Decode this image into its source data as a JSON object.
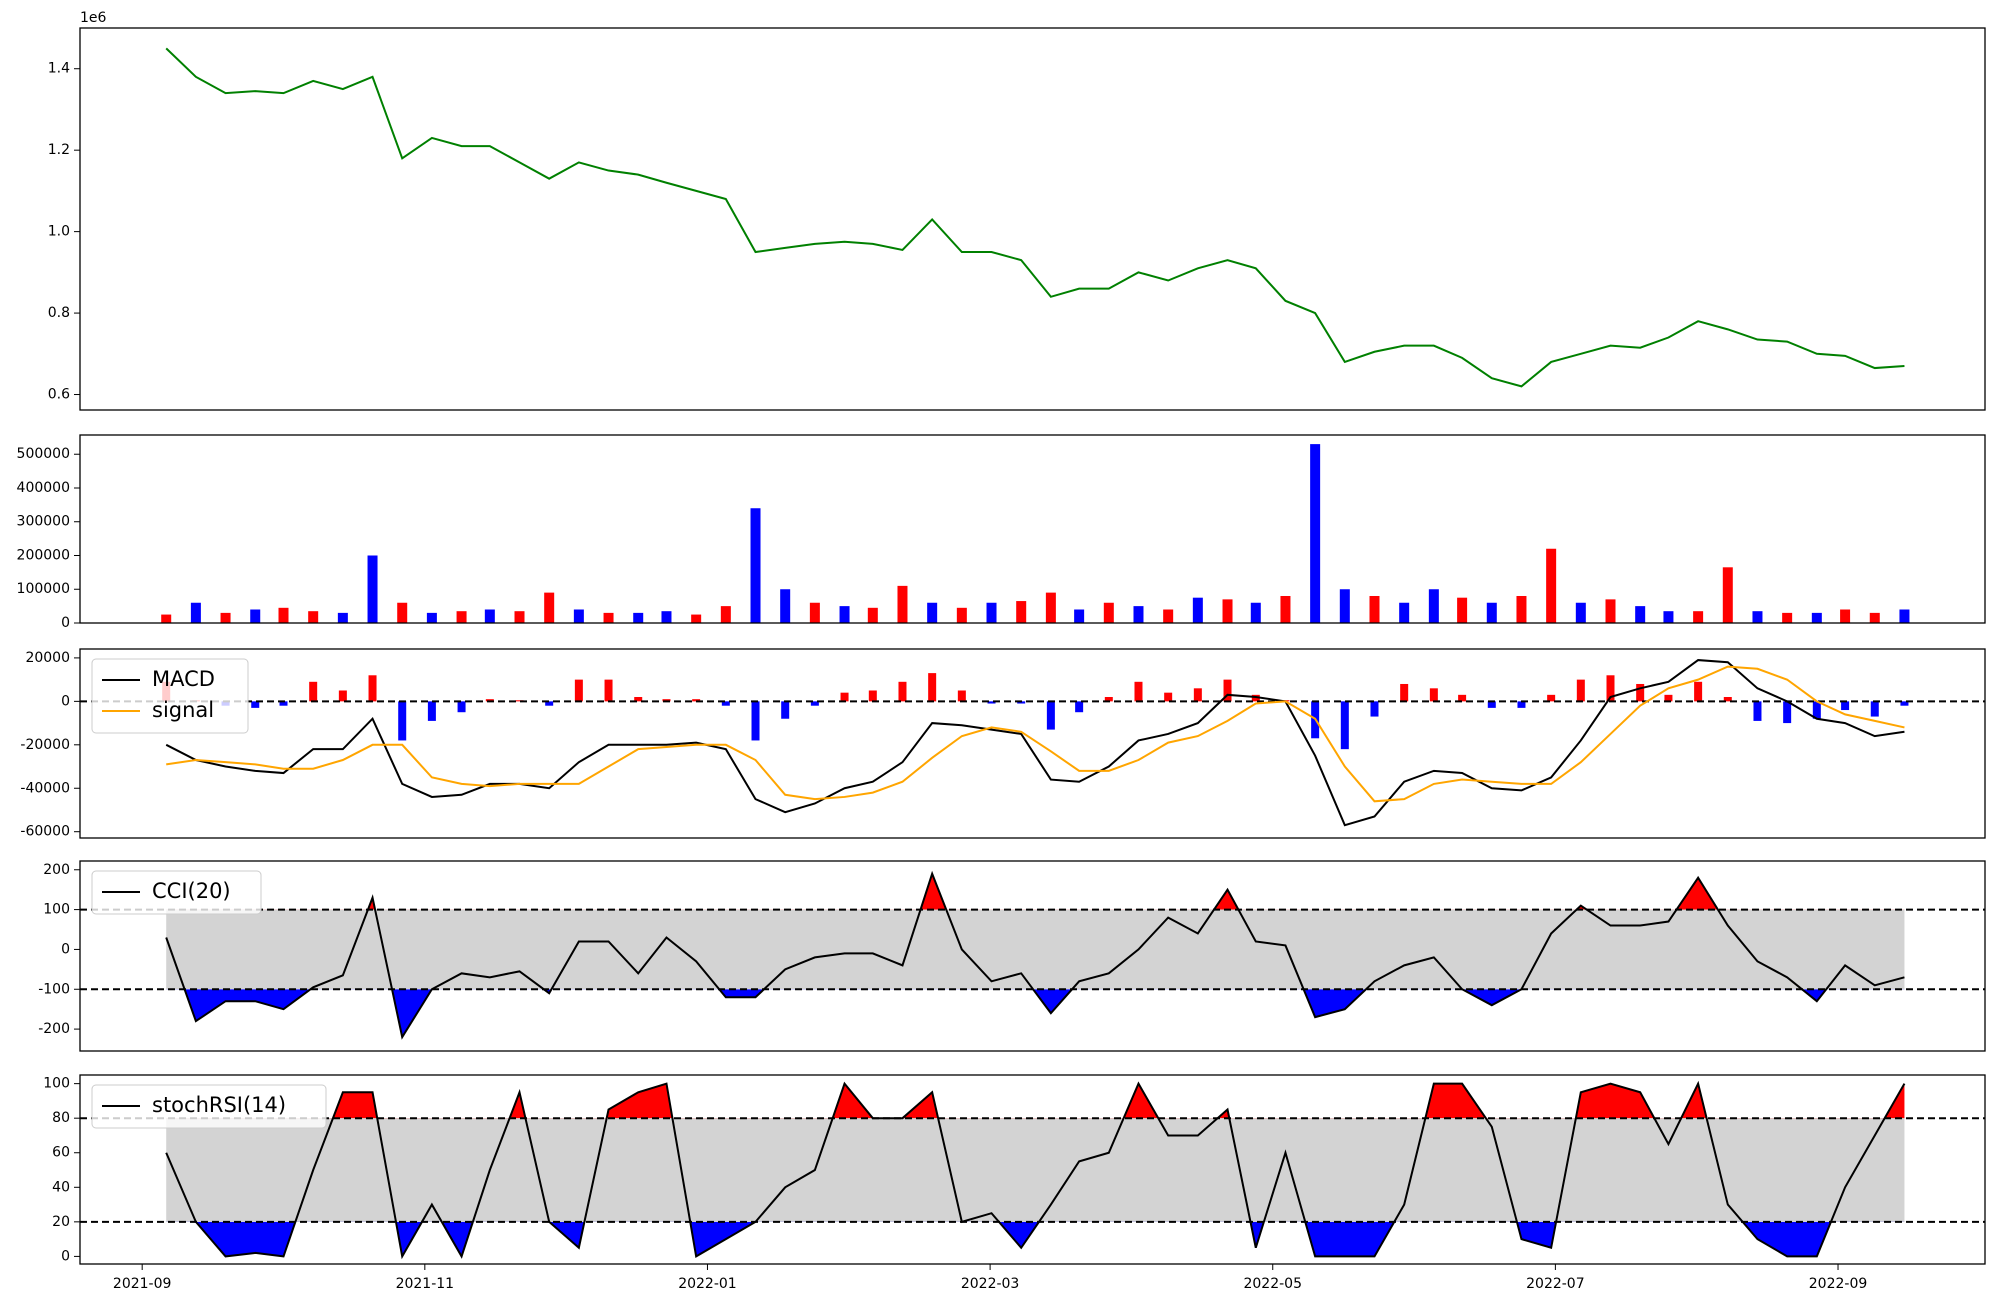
{
  "chart_data": [
    {
      "type": "line",
      "color": "green",
      "offset_label": "1e6",
      "x": [
        0.17,
        0.38,
        0.59,
        0.8,
        1.0,
        1.21,
        1.42,
        1.63,
        1.84,
        2.05,
        2.26,
        2.46,
        2.67,
        2.88,
        3.09,
        3.3,
        3.51,
        3.71,
        3.92,
        4.13,
        4.34,
        4.55,
        4.76,
        4.97,
        5.17,
        5.38,
        5.59,
        5.8,
        6.01,
        6.22,
        6.43,
        6.63,
        6.84,
        7.05,
        7.26,
        7.47,
        7.68,
        7.88,
        8.09,
        8.3,
        8.51,
        8.72,
        8.93,
        9.14,
        9.34,
        9.55,
        9.76,
        9.97,
        10.18,
        10.39,
        10.6,
        10.8,
        11.01,
        11.22,
        11.43,
        11.64,
        11.85,
        12.05,
        12.26,
        12.47
      ],
      "values": [
        1.45,
        1.38,
        1.34,
        1.345,
        1.34,
        1.37,
        1.35,
        1.38,
        1.18,
        1.23,
        1.21,
        1.21,
        1.17,
        1.13,
        1.17,
        1.15,
        1.14,
        1.12,
        1.1,
        1.08,
        0.95,
        0.96,
        0.97,
        0.975,
        0.97,
        0.955,
        1.03,
        0.95,
        0.95,
        0.93,
        0.84,
        0.86,
        0.86,
        0.9,
        0.88,
        0.91,
        0.93,
        0.91,
        0.83,
        0.8,
        0.68,
        0.705,
        0.72,
        0.72,
        0.69,
        0.64,
        0.62,
        0.68,
        0.7,
        0.72,
        0.715,
        0.74,
        0.78,
        0.76,
        0.735,
        0.73,
        0.7,
        0.695,
        0.665,
        0.67
      ],
      "xlim": [
        -0.44,
        13.04
      ],
      "ylim": [
        0.562,
        1.5
      ],
      "yticks": [
        {
          "value": 0.6,
          "label": "0.6"
        },
        {
          "value": 0.8,
          "label": "0.8"
        },
        {
          "value": 1.0,
          "label": "1.0"
        },
        {
          "value": 1.2,
          "label": "1.2"
        },
        {
          "value": 1.4,
          "label": "1.4"
        }
      ]
    },
    {
      "type": "bar",
      "x": [
        0.17,
        0.38,
        0.59,
        0.8,
        1.0,
        1.21,
        1.42,
        1.63,
        1.84,
        2.05,
        2.26,
        2.46,
        2.67,
        2.88,
        3.09,
        3.3,
        3.51,
        3.71,
        3.92,
        4.13,
        4.34,
        4.55,
        4.76,
        4.97,
        5.17,
        5.38,
        5.59,
        5.8,
        6.01,
        6.22,
        6.43,
        6.63,
        6.84,
        7.05,
        7.26,
        7.47,
        7.68,
        7.88,
        8.09,
        8.3,
        8.51,
        8.72,
        8.93,
        9.14,
        9.34,
        9.55,
        9.76,
        9.97,
        10.18,
        10.39,
        10.6,
        10.8,
        11.01,
        11.22,
        11.43,
        11.64,
        11.85,
        12.05,
        12.26,
        12.47
      ],
      "values": [
        25000,
        60000,
        30000,
        40000,
        45000,
        35000,
        30000,
        200000,
        60000,
        30000,
        35000,
        40000,
        35000,
        90000,
        40000,
        30000,
        30000,
        35000,
        25000,
        50000,
        340000,
        100000,
        60000,
        50000,
        45000,
        110000,
        60000,
        45000,
        60000,
        65000,
        90000,
        40000,
        60000,
        50000,
        40000,
        75000,
        70000,
        60000,
        80000,
        530000,
        100000,
        80000,
        60000,
        100000,
        75000,
        60000,
        80000,
        220000,
        60000,
        70000,
        50000,
        35000,
        35000,
        165000,
        35000,
        30000,
        30000,
        40000,
        30000,
        40000
      ],
      "colors": [
        "red",
        "blue",
        "red",
        "blue",
        "red",
        "red",
        "blue",
        "blue",
        "red",
        "blue",
        "red",
        "blue",
        "red",
        "red",
        "blue",
        "red",
        "blue",
        "blue",
        "red",
        "red",
        "blue",
        "blue",
        "red",
        "blue",
        "red",
        "red",
        "blue",
        "red",
        "blue",
        "red",
        "red",
        "blue",
        "red",
        "blue",
        "red",
        "blue",
        "red",
        "blue",
        "red",
        "blue",
        "blue",
        "red",
        "blue",
        "blue",
        "red",
        "blue",
        "red",
        "red",
        "blue",
        "red",
        "blue",
        "blue",
        "red",
        "red",
        "blue",
        "red",
        "blue",
        "red",
        "red",
        "blue"
      ],
      "xlim": [
        -0.44,
        13.04
      ],
      "ylim": [
        0,
        557000
      ],
      "yticks": [
        0,
        100000,
        200000,
        300000,
        400000,
        500000
      ]
    },
    {
      "type": "macd",
      "x": [
        0.17,
        0.38,
        0.59,
        0.8,
        1.0,
        1.21,
        1.42,
        1.63,
        1.84,
        2.05,
        2.26,
        2.46,
        2.67,
        2.88,
        3.09,
        3.3,
        3.51,
        3.71,
        3.92,
        4.13,
        4.34,
        4.55,
        4.76,
        4.97,
        5.17,
        5.38,
        5.59,
        5.8,
        6.01,
        6.22,
        6.43,
        6.63,
        6.84,
        7.05,
        7.26,
        7.47,
        7.68,
        7.88,
        8.09,
        8.3,
        8.51,
        8.72,
        8.93,
        9.14,
        9.34,
        9.55,
        9.76,
        9.97,
        10.18,
        10.39,
        10.6,
        10.8,
        11.01,
        11.22,
        11.43,
        11.64,
        11.85,
        12.05,
        12.26,
        12.47
      ],
      "series": [
        {
          "name": "MACD",
          "color": "black",
          "values": [
            -20000,
            -27000,
            -30000,
            -32000,
            -33000,
            -22000,
            -22000,
            -8000,
            -38000,
            -44000,
            -43000,
            -38000,
            -38000,
            -40000,
            -28000,
            -20000,
            -20000,
            -20000,
            -19000,
            -22000,
            -45000,
            -51000,
            -47000,
            -40000,
            -37000,
            -28000,
            -10000,
            -11000,
            -13000,
            -15000,
            -36000,
            -37000,
            -30000,
            -18000,
            -15000,
            -10000,
            3000,
            2000,
            0,
            -25000,
            -57000,
            -53000,
            -37000,
            -32000,
            -33000,
            -40000,
            -41000,
            -35000,
            -18000,
            2000,
            6000,
            9000,
            19000,
            18000,
            6000,
            0,
            -8000,
            -10000,
            -16000,
            -14000
          ]
        },
        {
          "name": "signal",
          "color": "orange",
          "values": [
            -29000,
            -27000,
            -28000,
            -29000,
            -31000,
            -31000,
            -27000,
            -20000,
            -20000,
            -35000,
            -38000,
            -39000,
            -38000,
            -38000,
            -38000,
            -30000,
            -22000,
            -21000,
            -20000,
            -20000,
            -27000,
            -43000,
            -45000,
            -44000,
            -42000,
            -37000,
            -26000,
            -16000,
            -12000,
            -14000,
            -23000,
            -32000,
            -32000,
            -27000,
            -19000,
            -16000,
            -9000,
            -1000,
            0,
            -8000,
            -30000,
            -46000,
            -45000,
            -38000,
            -36000,
            -37000,
            -38000,
            -38000,
            -28000,
            -15000,
            -2000,
            6000,
            10000,
            16000,
            15000,
            10000,
            0,
            -6000,
            -9000,
            -12000
          ]
        }
      ],
      "histogram": [
        9000,
        500,
        -2000,
        -3000,
        -2000,
        9000,
        5000,
        12000,
        -18000,
        -9000,
        -5000,
        1000,
        500,
        -2000,
        10000,
        10000,
        2000,
        1000,
        1000,
        -2000,
        -18000,
        -8000,
        -2000,
        4000,
        5000,
        9000,
        13000,
        5000,
        -1000,
        -1000,
        -13000,
        -5000,
        2000,
        9000,
        4000,
        6000,
        10000,
        3000,
        500,
        -17000,
        -22000,
        -7000,
        8000,
        6000,
        3000,
        -3000,
        -3000,
        3000,
        10000,
        12000,
        8000,
        3000,
        9000,
        2000,
        -9000,
        -10000,
        -8000,
        -4000,
        -7000,
        -2000
      ],
      "up_color": "red",
      "down_color": "blue",
      "levels": [
        0
      ],
      "legend": "upper left",
      "xlim": [
        -0.44,
        13.04
      ],
      "ylim": [
        -62900,
        24100
      ],
      "yticks": [
        -60000,
        -40000,
        -20000,
        0,
        20000
      ]
    },
    {
      "type": "oscillator",
      "x": [
        0.17,
        0.38,
        0.59,
        0.8,
        1.0,
        1.21,
        1.42,
        1.63,
        1.84,
        2.05,
        2.26,
        2.46,
        2.67,
        2.88,
        3.09,
        3.3,
        3.51,
        3.71,
        3.92,
        4.13,
        4.34,
        4.55,
        4.76,
        4.97,
        5.17,
        5.38,
        5.59,
        5.8,
        6.01,
        6.22,
        6.43,
        6.63,
        6.84,
        7.05,
        7.26,
        7.47,
        7.68,
        7.88,
        8.09,
        8.3,
        8.51,
        8.72,
        8.93,
        9.14,
        9.34,
        9.55,
        9.76,
        9.97,
        10.18,
        10.39,
        10.6,
        10.8,
        11.01,
        11.22,
        11.43,
        11.64,
        11.85,
        12.05,
        12.26,
        12.47
      ],
      "series": [
        {
          "name": "CCI(20)",
          "color": "black",
          "values": [
            30,
            -180,
            -130,
            -130,
            -150,
            -95,
            -65,
            130,
            -220,
            -100,
            -60,
            -70,
            -55,
            -110,
            20,
            20,
            -60,
            30,
            -30,
            -120,
            -120,
            -50,
            -20,
            -10,
            -10,
            -40,
            190,
            0,
            -80,
            -60,
            -160,
            -80,
            -60,
            0,
            80,
            40,
            150,
            20,
            10,
            -170,
            -150,
            -80,
            -40,
            -20,
            -100,
            -140,
            -100,
            40,
            110,
            60,
            60,
            70,
            180,
            60,
            -30,
            -70,
            -130,
            -40,
            -90,
            -70
          ]
        }
      ],
      "levels": [
        100,
        -100
      ],
      "above_color": "red",
      "below_color": "blue",
      "band_color": "lightgray",
      "legend": "upper left",
      "xlim": [
        -0.44,
        13.04
      ],
      "ylim": [
        -255,
        222
      ],
      "yticks": [
        -200,
        -100,
        0,
        100,
        200
      ]
    },
    {
      "type": "oscillator",
      "x": [
        0.17,
        0.38,
        0.59,
        0.8,
        1.0,
        1.21,
        1.42,
        1.63,
        1.84,
        2.05,
        2.26,
        2.46,
        2.67,
        2.88,
        3.09,
        3.3,
        3.51,
        3.71,
        3.92,
        4.13,
        4.34,
        4.55,
        4.76,
        4.97,
        5.17,
        5.38,
        5.59,
        5.8,
        6.01,
        6.22,
        6.43,
        6.63,
        6.84,
        7.05,
        7.26,
        7.47,
        7.68,
        7.88,
        8.09,
        8.3,
        8.51,
        8.72,
        8.93,
        9.14,
        9.34,
        9.55,
        9.76,
        9.97,
        10.18,
        10.39,
        10.6,
        10.8,
        11.01,
        11.22,
        11.43,
        11.64,
        11.85,
        12.05,
        12.26,
        12.47
      ],
      "series": [
        {
          "name": "stochRSI(14)",
          "color": "black",
          "values": [
            60,
            20,
            0,
            2,
            0,
            50,
            95,
            95,
            0,
            30,
            0,
            50,
            95,
            20,
            5,
            85,
            95,
            100,
            0,
            10,
            20,
            40,
            50,
            100,
            80,
            80,
            95,
            20,
            25,
            5,
            30,
            55,
            60,
            100,
            70,
            70,
            85,
            5,
            60,
            0,
            0,
            0,
            30,
            100,
            100,
            75,
            10,
            5,
            95,
            100,
            95,
            65,
            100,
            30,
            10,
            0,
            0,
            40,
            70,
            100
          ]
        }
      ],
      "levels": [
        80,
        20
      ],
      "above_color": "red",
      "below_color": "blue",
      "band_color": "lightgray",
      "legend": "upper left",
      "xlim": [
        -0.44,
        13.04
      ],
      "ylim": [
        -4.4,
        105
      ],
      "yticks": [
        0,
        20,
        40,
        60,
        80,
        100
      ],
      "xticks": [
        {
          "value": 0,
          "label": "2021-09"
        },
        {
          "value": 2,
          "label": "2021-11"
        },
        {
          "value": 4,
          "label": "2022-01"
        },
        {
          "value": 6,
          "label": "2022-03"
        },
        {
          "value": 8,
          "label": "2022-05"
        },
        {
          "value": 10,
          "label": "2022-07"
        },
        {
          "value": 12,
          "label": "2022-09"
        }
      ]
    }
  ]
}
